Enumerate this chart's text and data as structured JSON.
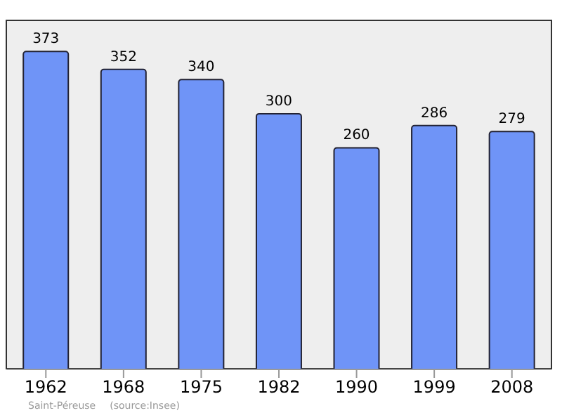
{
  "chart_data": {
    "type": "bar",
    "categories": [
      "1962",
      "1968",
      "1975",
      "1982",
      "1990",
      "1999",
      "2008"
    ],
    "values": [
      373,
      352,
      340,
      300,
      260,
      286,
      279
    ],
    "color": "#6f94f7",
    "data_labels": true,
    "tick_labels": "x",
    "annotations": [
      "Saint-Péreuse",
      "(source:Insee)"
    ]
  }
}
